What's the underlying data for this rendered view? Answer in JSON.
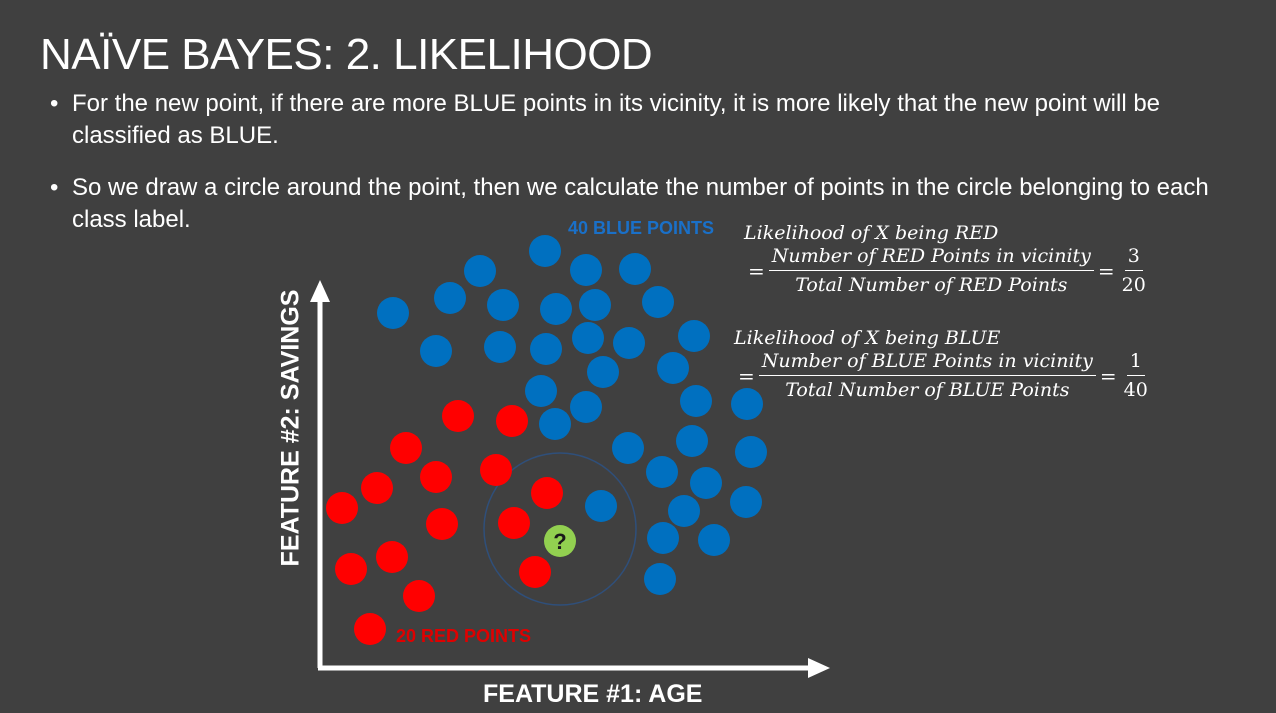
{
  "title": "NAÏVE BAYES: 2. LIKELIHOOD",
  "bullets": [
    "For the new point, if there are more BLUE points in its vicinity, it is more likely that the new point will be classified as BLUE.",
    "So we draw a circle around the point, then we calculate the number of points in the circle belonging to each class label."
  ],
  "diagram": {
    "blue_count_label": "40 BLUE POINTS",
    "red_count_label": "20 RED POINTS",
    "x_axis_label": "FEATURE #1: AGE",
    "y_axis_label": "FEATURE #2: SAVINGS",
    "new_point_symbol": "?",
    "colors": {
      "blue": "#0070c0",
      "red": "#ff0000",
      "new_point": "#92d050",
      "circle": "#2f4f7a",
      "axis": "#ffffff"
    }
  },
  "formulas": {
    "red": {
      "line1": "Likelihood of X being RED",
      "eq": "=",
      "numerator": "Number of RED Points in vicinity",
      "denominator": "Total Number of RED Points",
      "eq2": "=",
      "value_num": "3",
      "value_den": "20"
    },
    "blue": {
      "line1": "Likelihood of X being BLUE",
      "eq": "=",
      "numerator": "Number of BLUE Points in vicinity",
      "denominator": "Total Number of BLUE Points",
      "eq2": "=",
      "value_num": "1",
      "value_den": "40"
    }
  }
}
